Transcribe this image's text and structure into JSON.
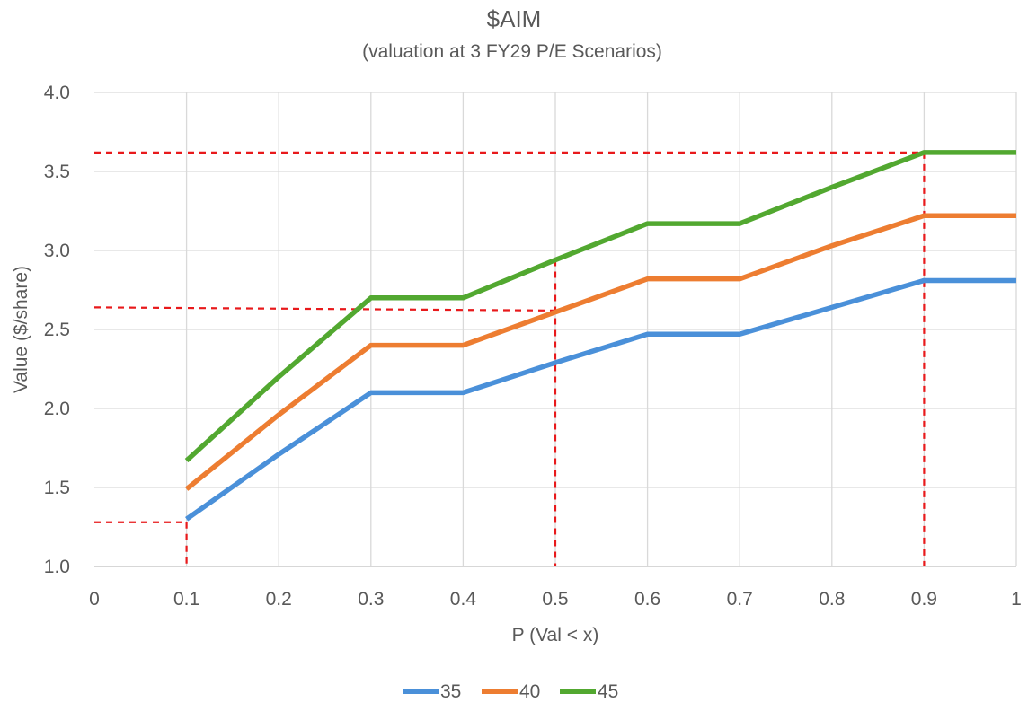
{
  "chart_data": {
    "type": "line",
    "title": "$AIM",
    "subtitle": "(valuation at 3 FY29 P/E Scenarios)",
    "xlabel": "P (Val < x)",
    "ylabel": "Value ($/share)",
    "xlim": [
      0,
      1
    ],
    "ylim": [
      1.0,
      4.0
    ],
    "x_ticks": [
      0,
      0.1,
      0.2,
      0.3,
      0.4,
      0.5,
      0.6,
      0.7,
      0.8,
      0.9,
      1
    ],
    "x_tick_labels": [
      "0",
      "0.1",
      "0.2",
      "0.3",
      "0.4",
      "0.5",
      "0.6",
      "0.7",
      "0.8",
      "0.9",
      "1"
    ],
    "y_ticks": [
      1.0,
      1.5,
      2.0,
      2.5,
      3.0,
      3.5,
      4.0
    ],
    "y_tick_labels": [
      "1.0",
      "1.5",
      "2.0",
      "2.5",
      "3.0",
      "3.5",
      "4.0"
    ],
    "grid": true,
    "legend_position": "bottom",
    "series": [
      {
        "name": "35",
        "color": "#4a90d9",
        "x": [
          0.1,
          0.2,
          0.3,
          0.4,
          0.5,
          0.6,
          0.7,
          0.8,
          0.9,
          1.0
        ],
        "y": [
          1.3,
          1.71,
          2.1,
          2.1,
          2.29,
          2.47,
          2.47,
          2.64,
          2.81,
          2.81
        ]
      },
      {
        "name": "40",
        "color": "#ed7d31",
        "x": [
          0.1,
          0.2,
          0.3,
          0.4,
          0.5,
          0.6,
          0.7,
          0.8,
          0.9,
          1.0
        ],
        "y": [
          1.49,
          1.96,
          2.4,
          2.4,
          2.61,
          2.82,
          2.82,
          3.03,
          3.22,
          3.22
        ]
      },
      {
        "name": "45",
        "color": "#52a830",
        "x": [
          0.1,
          0.2,
          0.3,
          0.4,
          0.5,
          0.6,
          0.7,
          0.8,
          0.9,
          1.0
        ],
        "y": [
          1.67,
          2.2,
          2.7,
          2.7,
          2.94,
          3.17,
          3.17,
          3.4,
          3.62,
          3.62
        ]
      }
    ],
    "annotations": [
      {
        "type": "horizontal-dashed",
        "color": "#e8191b",
        "points": [
          [
            0,
            1.28
          ],
          [
            0.1,
            1.28
          ]
        ]
      },
      {
        "type": "vertical-dashed",
        "color": "#e8191b",
        "points": [
          [
            0.1,
            1.28
          ],
          [
            0.1,
            1.0
          ]
        ]
      },
      {
        "type": "horizontal-dashed",
        "color": "#e8191b",
        "points": [
          [
            0,
            2.64
          ],
          [
            0.5,
            2.62
          ]
        ]
      },
      {
        "type": "vertical-dashed",
        "color": "#e8191b",
        "points": [
          [
            0.5,
            2.94
          ],
          [
            0.5,
            1.0
          ]
        ]
      },
      {
        "type": "horizontal-dashed",
        "color": "#e8191b",
        "points": [
          [
            0,
            3.62
          ],
          [
            0.9,
            3.62
          ]
        ]
      },
      {
        "type": "vertical-dashed",
        "color": "#e8191b",
        "points": [
          [
            0.9,
            3.62
          ],
          [
            0.9,
            1.0
          ]
        ]
      }
    ]
  }
}
